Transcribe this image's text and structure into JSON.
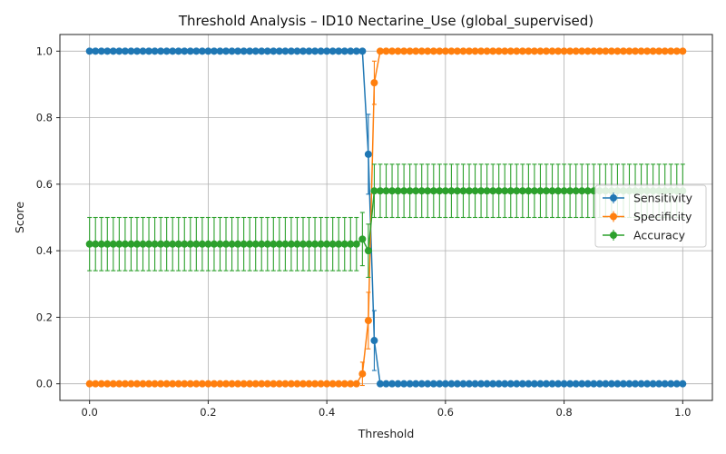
{
  "chart_data": {
    "type": "line",
    "title": "Threshold Analysis – ID10 Nectarine_Use (global_supervised)",
    "xlabel": "Threshold",
    "ylabel": "Score",
    "xlim": [
      -0.05,
      1.05
    ],
    "ylim": [
      -0.05,
      1.05
    ],
    "xticks": [
      0.0,
      0.2,
      0.4,
      0.6,
      0.8,
      1.0
    ],
    "xtick_labels": [
      "0.0",
      "0.2",
      "0.4",
      "0.6",
      "0.8",
      "1.0"
    ],
    "yticks": [
      0.0,
      0.2,
      0.4,
      0.6,
      0.8,
      1.0
    ],
    "ytick_labels": [
      "0.0",
      "0.2",
      "0.4",
      "0.6",
      "0.8",
      "1.0"
    ],
    "grid": true,
    "legend_position": "center-right",
    "x": [
      0.0,
      0.01,
      0.02,
      0.03,
      0.04,
      0.05,
      0.06,
      0.07,
      0.08,
      0.09,
      0.1,
      0.11,
      0.12,
      0.13,
      0.14,
      0.15,
      0.16,
      0.17,
      0.18,
      0.19,
      0.2,
      0.21,
      0.22,
      0.23,
      0.24,
      0.25,
      0.26,
      0.27,
      0.28,
      0.29,
      0.3,
      0.31,
      0.32,
      0.33,
      0.34,
      0.35,
      0.36,
      0.37,
      0.38,
      0.39,
      0.4,
      0.41,
      0.42,
      0.43,
      0.44,
      0.45,
      0.46,
      0.47,
      0.48,
      0.49,
      0.5,
      0.51,
      0.52,
      0.53,
      0.54,
      0.55,
      0.56,
      0.57,
      0.58,
      0.59,
      0.6,
      0.61,
      0.62,
      0.63,
      0.64,
      0.65,
      0.66,
      0.67,
      0.68,
      0.69,
      0.7,
      0.71,
      0.72,
      0.73,
      0.74,
      0.75,
      0.76,
      0.77,
      0.78,
      0.79,
      0.8,
      0.81,
      0.82,
      0.83,
      0.84,
      0.85,
      0.86,
      0.87,
      0.88,
      0.89,
      0.9,
      0.91,
      0.92,
      0.93,
      0.94,
      0.95,
      0.96,
      0.97,
      0.98,
      0.99,
      1.0
    ],
    "series": [
      {
        "name": "Sensitivity",
        "color": "#1f77b4",
        "values": [
          1,
          1,
          1,
          1,
          1,
          1,
          1,
          1,
          1,
          1,
          1,
          1,
          1,
          1,
          1,
          1,
          1,
          1,
          1,
          1,
          1,
          1,
          1,
          1,
          1,
          1,
          1,
          1,
          1,
          1,
          1,
          1,
          1,
          1,
          1,
          1,
          1,
          1,
          1,
          1,
          1,
          1,
          1,
          1,
          1,
          1,
          1.0,
          0.69,
          0.13,
          0,
          0,
          0,
          0,
          0,
          0,
          0,
          0,
          0,
          0,
          0,
          0,
          0,
          0,
          0,
          0,
          0,
          0,
          0,
          0,
          0,
          0,
          0,
          0,
          0,
          0,
          0,
          0,
          0,
          0,
          0,
          0,
          0,
          0,
          0,
          0,
          0,
          0,
          0,
          0,
          0,
          0,
          0,
          0,
          0,
          0,
          0,
          0,
          0,
          0,
          0,
          0
        ],
        "errors": {
          "46": 0.0,
          "47": 0.12,
          "48": 0.09
        }
      },
      {
        "name": "Specificity",
        "color": "#ff7f0e",
        "values": [
          0,
          0,
          0,
          0,
          0,
          0,
          0,
          0,
          0,
          0,
          0,
          0,
          0,
          0,
          0,
          0,
          0,
          0,
          0,
          0,
          0,
          0,
          0,
          0,
          0,
          0,
          0,
          0,
          0,
          0,
          0,
          0,
          0,
          0,
          0,
          0,
          0,
          0,
          0,
          0,
          0,
          0,
          0,
          0,
          0,
          0,
          0.03,
          0.19,
          0.905,
          1,
          1,
          1,
          1,
          1,
          1,
          1,
          1,
          1,
          1,
          1,
          1,
          1,
          1,
          1,
          1,
          1,
          1,
          1,
          1,
          1,
          1,
          1,
          1,
          1,
          1,
          1,
          1,
          1,
          1,
          1,
          1,
          1,
          1,
          1,
          1,
          1,
          1,
          1,
          1,
          1,
          1,
          1,
          1,
          1,
          1,
          1,
          1,
          1,
          1,
          1,
          1
        ],
        "errors": {
          "46": 0.035,
          "47": 0.085,
          "48": 0.065
        }
      },
      {
        "name": "Accuracy",
        "color": "#2ca02c",
        "values": [
          0.42,
          0.42,
          0.42,
          0.42,
          0.42,
          0.42,
          0.42,
          0.42,
          0.42,
          0.42,
          0.42,
          0.42,
          0.42,
          0.42,
          0.42,
          0.42,
          0.42,
          0.42,
          0.42,
          0.42,
          0.42,
          0.42,
          0.42,
          0.42,
          0.42,
          0.42,
          0.42,
          0.42,
          0.42,
          0.42,
          0.42,
          0.42,
          0.42,
          0.42,
          0.42,
          0.42,
          0.42,
          0.42,
          0.42,
          0.42,
          0.42,
          0.42,
          0.42,
          0.42,
          0.42,
          0.42,
          0.435,
          0.4,
          0.58,
          0.58,
          0.58,
          0.58,
          0.58,
          0.58,
          0.58,
          0.58,
          0.58,
          0.58,
          0.58,
          0.58,
          0.58,
          0.58,
          0.58,
          0.58,
          0.58,
          0.58,
          0.58,
          0.58,
          0.58,
          0.58,
          0.58,
          0.58,
          0.58,
          0.58,
          0.58,
          0.58,
          0.58,
          0.58,
          0.58,
          0.58,
          0.58,
          0.58,
          0.58,
          0.58,
          0.58,
          0.58,
          0.58,
          0.58,
          0.58,
          0.58,
          0.58,
          0.58,
          0.58,
          0.58,
          0.58,
          0.58,
          0.58,
          0.58,
          0.58,
          0.58,
          0.58
        ],
        "errors_default": 0.08,
        "errors": {
          "46": 0.08,
          "47": 0.08
        }
      }
    ]
  }
}
